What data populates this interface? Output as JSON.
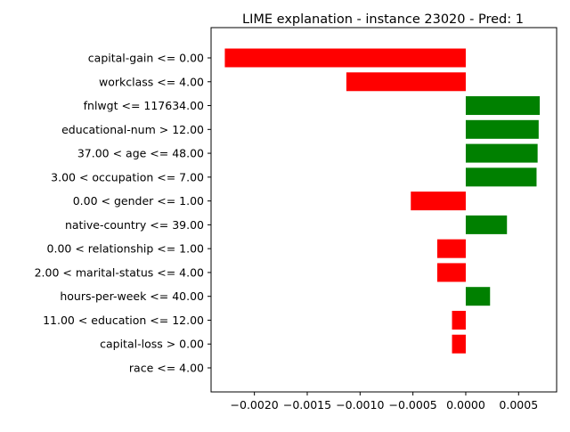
{
  "chart_data": {
    "type": "bar",
    "orientation": "horizontal",
    "title": "LIME explanation - instance 23020 - Pred: 1",
    "xlabel": "",
    "ylabel": "",
    "xlim": [
      -0.00241,
      0.00086
    ],
    "xticks": [
      -0.002,
      -0.0015,
      -0.001,
      -0.0005,
      0.0,
      0.0005
    ],
    "xtick_labels": [
      "−0.0020",
      "−0.0015",
      "−0.0010",
      "−0.0005",
      "0.0000",
      "0.0005"
    ],
    "grid": false,
    "colors": {
      "positive": "#008000",
      "negative": "#ff0000"
    },
    "categories": [
      "capital-gain <= 0.00",
      "workclass <= 4.00",
      "fnlwgt <= 117634.00",
      "educational-num > 12.00",
      "37.00 < age <= 48.00",
      "3.00 < occupation <= 7.00",
      "0.00 < gender <= 1.00",
      "native-country <= 39.00",
      "0.00 < relationship <= 1.00",
      "2.00 < marital-status <= 4.00",
      "hours-per-week <= 40.00",
      "11.00 < education <= 12.00",
      "capital-loss > 0.00",
      "race <= 4.00"
    ],
    "values": [
      -0.00228,
      -0.00113,
      0.0007,
      0.00069,
      0.00068,
      0.00067,
      -0.00052,
      0.00039,
      -0.00027,
      -0.00027,
      0.00023,
      -0.00013,
      -0.00013,
      0.0
    ]
  }
}
